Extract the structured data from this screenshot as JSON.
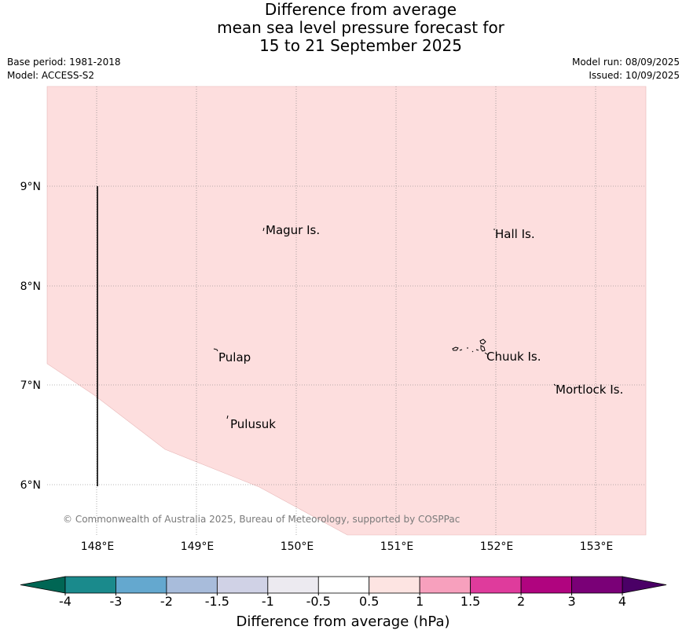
{
  "title": {
    "line1": "Difference from average",
    "line2": "mean sea level pressure forecast for",
    "line3": "15 to 21 September 2025"
  },
  "meta": {
    "base_period": "Base period: 1981-2018",
    "model": "Model: ACCESS-S2",
    "model_run": "Model run: 08/09/2025",
    "issued": "Issued: 10/09/2025"
  },
  "map": {
    "lat_labels": [
      "9°N",
      "8°N",
      "7°N",
      "6°N"
    ],
    "lon_labels": [
      "148°E",
      "149°E",
      "150°E",
      "151°E",
      "152°E",
      "153°E"
    ],
    "places": [
      "Magur Is.",
      "Hall Is.",
      "Pulap",
      "Chuuk Is.",
      "Mortlock Is.",
      "Pulusuk"
    ],
    "fill_color": "#fddede",
    "copyright": "© Commonwealth of Australia 2025, Bureau of Meteorology, supported by COSPPac"
  },
  "colorbar": {
    "ticks": [
      "-4",
      "-3",
      "-2",
      "-1.5",
      "-1",
      "-0.5",
      "0.5",
      "1",
      "1.5",
      "2",
      "3",
      "4"
    ],
    "colors": [
      "#1a8a8c",
      "#64a8cf",
      "#a8bcdb",
      "#d0d2e6",
      "#eceaf0",
      "#ffffff",
      "#fde4e2",
      "#f7a0bd",
      "#df3b9c",
      "#b0047f",
      "#7a0077"
    ],
    "under_color": "#006654",
    "over_color": "#4a0066",
    "label": "Difference from average (hPa)"
  }
}
